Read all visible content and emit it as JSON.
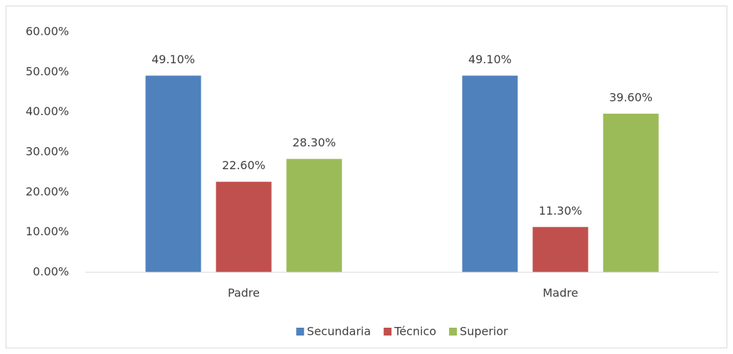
{
  "chart_data": {
    "type": "bar",
    "categories": [
      "Padre",
      "Madre"
    ],
    "series": [
      {
        "name": "Secundaria",
        "color": "#4f81bd",
        "values": [
          49.1,
          49.1
        ],
        "value_labels": [
          "49.10%",
          "49.10%"
        ]
      },
      {
        "name": "Técnico",
        "color": "#c0504d",
        "values": [
          22.6,
          11.3
        ],
        "value_labels": [
          "22.60%",
          "11.30%"
        ]
      },
      {
        "name": "Superior",
        "color": "#9bbb59",
        "values": [
          28.3,
          39.6
        ],
        "value_labels": [
          "28.30%",
          "39.60%"
        ]
      }
    ],
    "ylim": [
      0,
      60
    ],
    "yticks": [
      {
        "value": 0,
        "label": "0.00%"
      },
      {
        "value": 10,
        "label": "10.00%"
      },
      {
        "value": 20,
        "label": "20.00%"
      },
      {
        "value": 30,
        "label": "30.00%"
      },
      {
        "value": 40,
        "label": "40.00%"
      },
      {
        "value": 50,
        "label": "50.00%"
      },
      {
        "value": 60,
        "label": "60.00%"
      }
    ],
    "grid": false,
    "legend": "bottom"
  }
}
